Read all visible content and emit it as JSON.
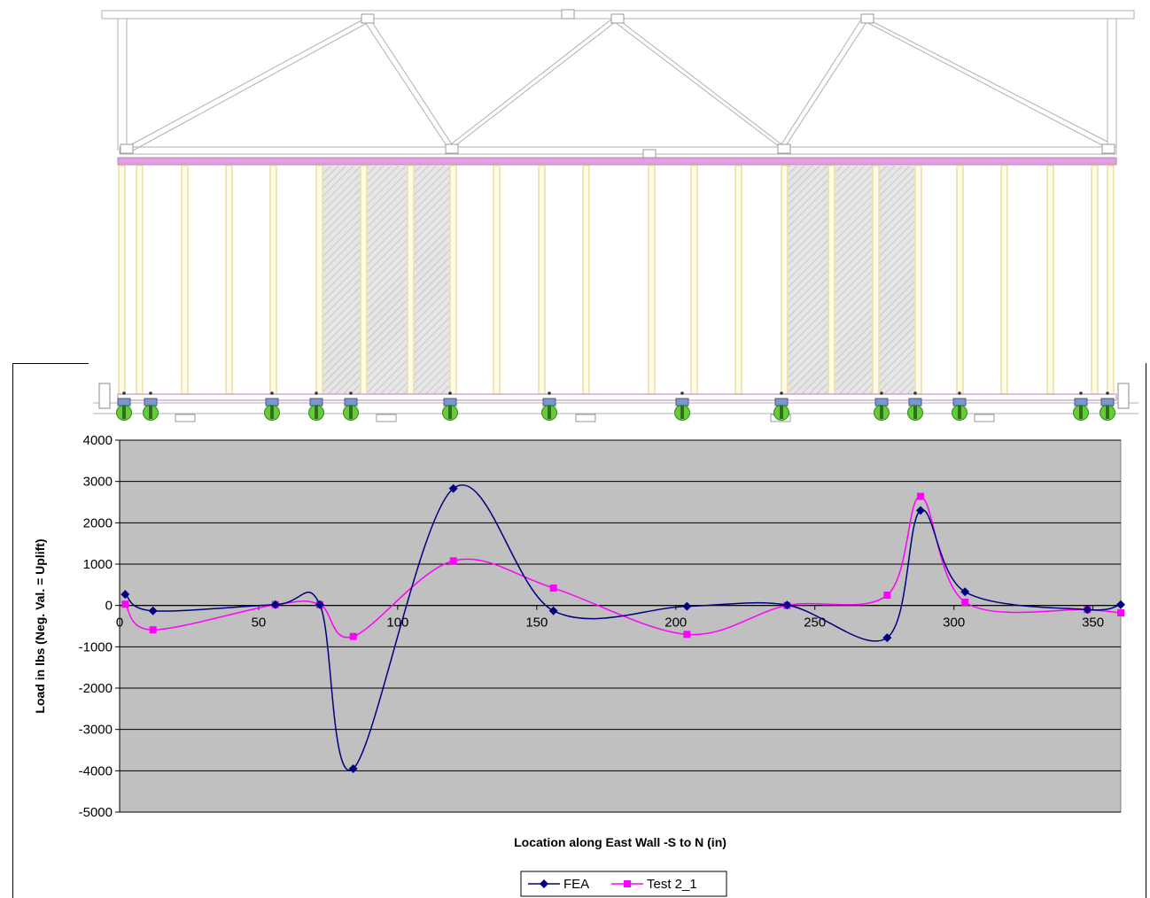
{
  "chart_data": {
    "type": "line",
    "title": "",
    "xlabel": "Location along East Wall -S to N (in)",
    "ylabel": "Load in lbs (Neg. Val. = Uplift)",
    "xlim": [
      0,
      360
    ],
    "ylim": [
      -5000,
      4000
    ],
    "x_ticks": [
      0,
      50,
      100,
      150,
      200,
      250,
      300,
      350
    ],
    "y_ticks": [
      4000,
      3000,
      2000,
      1000,
      0,
      -1000,
      -2000,
      -3000,
      -4000,
      -5000
    ],
    "x_tick_labels": [
      "0",
      "50",
      "100",
      "150",
      "200",
      "250",
      "300",
      "350"
    ],
    "y_tick_labels": [
      "4000",
      "3000",
      "2000",
      "1000",
      "0",
      "-1000",
      "-2000",
      "-3000",
      "-4000",
      "-5000"
    ],
    "plot_background": "#c0c0c0",
    "grid": "horizontal",
    "legend_position": "bottom-center",
    "series": [
      {
        "name": "FEA",
        "color": "#000080",
        "marker": "diamond",
        "x": [
          2,
          12,
          56,
          72,
          84,
          120,
          156,
          204,
          240,
          276,
          288,
          304,
          348,
          360
        ],
        "y": [
          270,
          -130,
          20,
          20,
          -3950,
          2830,
          -130,
          -20,
          10,
          -780,
          2300,
          330,
          -100,
          20
        ]
      },
      {
        "name": "Test 2_1",
        "color": "#ff00ff",
        "marker": "square",
        "x": [
          2,
          12,
          56,
          72,
          84,
          120,
          156,
          204,
          240,
          276,
          288,
          304,
          348,
          360
        ],
        "y": [
          30,
          -590,
          20,
          20,
          -750,
          1080,
          420,
          -700,
          0,
          250,
          2640,
          80,
          -100,
          -180
        ]
      }
    ]
  },
  "drawing": {
    "line_color": "#b0b0b0",
    "stud_color": "#e8e0a0",
    "plate_color": "#e0a0e0",
    "sheathing_color": "#d8d8d8",
    "anchor_color": "#66cc33",
    "anchor_cap_color": "#7799cc"
  }
}
